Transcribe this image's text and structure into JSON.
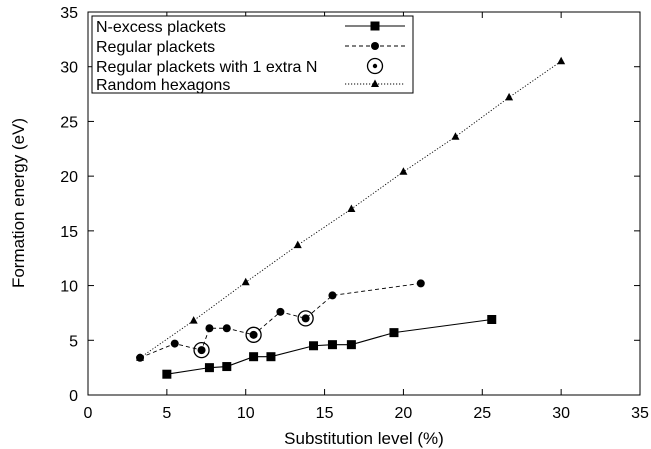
{
  "chart_data": {
    "type": "line",
    "title": "",
    "xlabel": "Substitution level (%)",
    "ylabel": "Formation energy (eV)",
    "xlim": [
      0,
      35
    ],
    "ylim": [
      0,
      35
    ],
    "xticks": [
      "0",
      "5",
      "10",
      "15",
      "20",
      "25",
      "30",
      "35"
    ],
    "yticks": [
      "0",
      "5",
      "10",
      "15",
      "20",
      "25",
      "30",
      "35"
    ],
    "grid": false,
    "legend_position": "top-left",
    "series": [
      {
        "name": "N-excess plackets",
        "marker": "square",
        "line": "solid",
        "x": [
          5.0,
          7.7,
          8.8,
          10.5,
          11.6,
          14.3,
          15.5,
          16.7,
          19.4,
          25.6
        ],
        "y": [
          1.9,
          2.5,
          2.6,
          3.5,
          3.5,
          4.5,
          4.6,
          4.6,
          5.7,
          6.9
        ]
      },
      {
        "name": "Regular plackets",
        "marker": "circle",
        "line": "dashed",
        "x": [
          3.3,
          5.5,
          7.2,
          7.7,
          8.8,
          10.5,
          12.2,
          13.8,
          15.5,
          21.1
        ],
        "y": [
          3.4,
          4.7,
          4.1,
          6.1,
          6.1,
          5.5,
          7.6,
          7.0,
          9.1,
          10.2
        ]
      },
      {
        "name": "Regular plackets with 1 extra N",
        "marker": "open-circle",
        "line": "none",
        "x": [
          7.2,
          10.5,
          13.8
        ],
        "y": [
          4.1,
          5.5,
          7.0
        ]
      },
      {
        "name": "Random hexagons",
        "marker": "triangle",
        "line": "dotted",
        "x": [
          3.3,
          6.7,
          10.0,
          13.3,
          16.7,
          20.0,
          23.3,
          26.7,
          30.0
        ],
        "y": [
          3.4,
          6.8,
          10.3,
          13.7,
          17.0,
          20.4,
          23.6,
          27.2,
          30.5
        ]
      }
    ]
  }
}
